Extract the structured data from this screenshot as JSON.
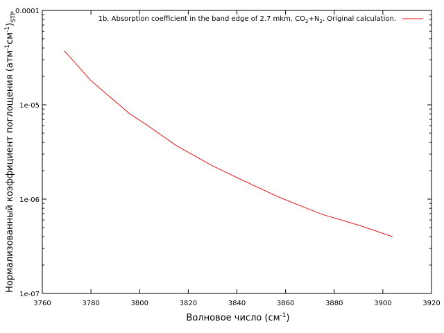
{
  "chart_data": {
    "type": "line",
    "scale": {
      "x": "linear",
      "y": "log"
    },
    "xlim": [
      3760,
      3920
    ],
    "ylim": [
      1e-07,
      0.0001
    ],
    "x_ticks": [
      {
        "value": 3760,
        "label": "3760"
      },
      {
        "value": 3780,
        "label": "3780"
      },
      {
        "value": 3800,
        "label": "3800"
      },
      {
        "value": 3820,
        "label": "3820"
      },
      {
        "value": 3840,
        "label": "3840"
      },
      {
        "value": 3860,
        "label": "3860"
      },
      {
        "value": 3880,
        "label": "3880"
      },
      {
        "value": 3900,
        "label": "3900"
      },
      {
        "value": 3920,
        "label": "3920"
      }
    ],
    "y_ticks": [
      {
        "value": 1e-07,
        "label": "1e-07"
      },
      {
        "value": 1e-06,
        "label": "1e-06"
      },
      {
        "value": 1e-05,
        "label": "1e-05"
      },
      {
        "value": 0.0001,
        "label": "0.0001"
      }
    ],
    "xlabel": {
      "text": "Волновое число (см",
      "sup": "-1",
      "tail": ")"
    },
    "ylabel": {
      "text": "Нормализованный коэффициент поглощения (атм",
      "sup1": "-1",
      "mid": "см",
      "sup2": "-1",
      "close": ")",
      "sub": "STP"
    },
    "legend_position": "top-right",
    "series": [
      {
        "name": {
          "pre": "1b. Absorption coefficient in the band edge of 2.7 mkm. CO",
          "sub1": "2",
          "mid": "+N",
          "sub2": "2",
          "post": ". Original calculation."
        },
        "color": "#e41a1c",
        "x": [
          3769,
          3780,
          3796,
          3803,
          3815,
          3830,
          3842,
          3858,
          3875,
          3890,
          3904
        ],
        "y": [
          3.75e-05,
          1.8e-05,
          8e-06,
          6.1e-06,
          3.7e-06,
          2.25e-06,
          1.6e-06,
          1.03e-06,
          6.9e-07,
          5.3e-07,
          4e-07
        ]
      }
    ]
  }
}
